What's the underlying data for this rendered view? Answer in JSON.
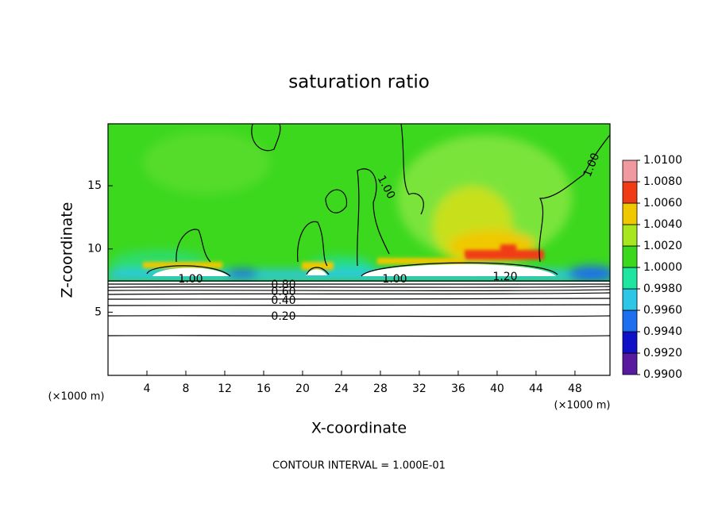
{
  "chart_data": {
    "type": "contour",
    "title": "saturation ratio",
    "xlabel": "X-coordinate",
    "ylabel": "Z-coordinate",
    "x_unit": "(×1000 m)",
    "y_unit": "(×1000 m)",
    "xlim": [
      0,
      51.6
    ],
    "xticks": [
      4,
      8,
      12,
      16,
      20,
      24,
      28,
      32,
      36,
      40,
      44,
      48
    ],
    "ylim": [
      0,
      19.9
    ],
    "yticks": [
      5,
      10,
      15
    ],
    "colorbar": {
      "levels": [
        {
          "value": 0.99,
          "label": "0.9900"
        },
        {
          "value": 0.992,
          "label": "0.9920"
        },
        {
          "value": 0.994,
          "label": "0.9940"
        },
        {
          "value": 0.996,
          "label": "0.9960"
        },
        {
          "value": 0.998,
          "label": "0.9980"
        },
        {
          "value": 1.0,
          "label": "1.0000"
        },
        {
          "value": 1.002,
          "label": "1.0020"
        },
        {
          "value": 1.004,
          "label": "1.0040"
        },
        {
          "value": 1.006,
          "label": "1.0060"
        },
        {
          "value": 1.008,
          "label": "1.0080"
        },
        {
          "value": 1.01,
          "label": "1.0100"
        }
      ],
      "colors": [
        "#5a1aa0",
        "#1010c8",
        "#1e6ef0",
        "#2cc6e6",
        "#1ee6a0",
        "#3cd81e",
        "#a8e61e",
        "#f0c800",
        "#f03c14",
        "#f09aa0"
      ]
    },
    "contour_labels": [
      {
        "value": 1.0,
        "label": "1.00"
      },
      {
        "value": 1.0,
        "label": "1.00"
      },
      {
        "value": 1.2,
        "label": "1.20"
      },
      {
        "value": 0.8,
        "label": "0.80"
      },
      {
        "value": 0.6,
        "label": "0.60"
      },
      {
        "value": 0.4,
        "label": "0.40"
      },
      {
        "value": 0.2,
        "label": "0.20"
      },
      {
        "value": 1.0,
        "label": "1.00"
      },
      {
        "value": 1.0,
        "label": "1.00"
      }
    ],
    "annotation": "CONTOUR INTERVAL = 1.000E-01"
  }
}
